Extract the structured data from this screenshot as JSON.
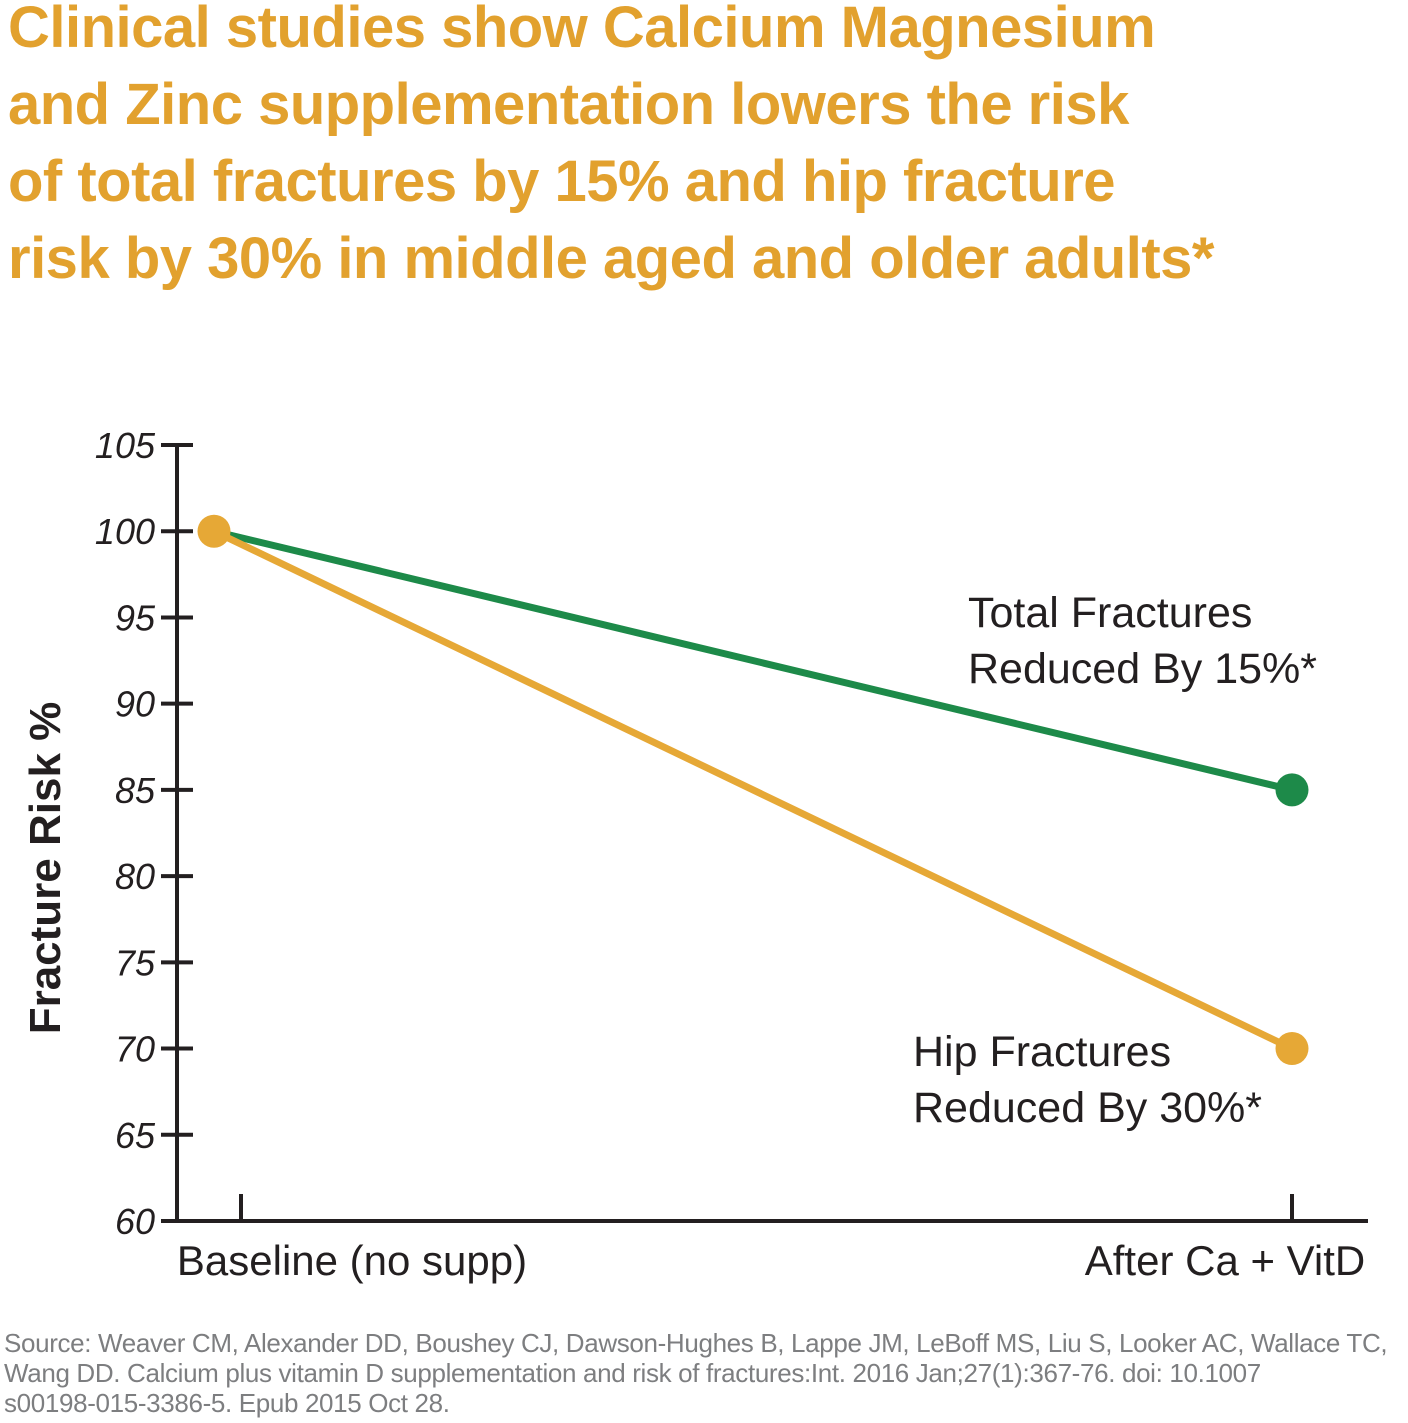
{
  "title": {
    "lines": [
      "Clinical studies show Calcium Magnesium",
      "and Zinc supplementation lowers the risk",
      "of total fractures by 15% and hip fracture",
      "risk by 30% in middle aged and older adults*"
    ],
    "color": "#E2A12E"
  },
  "chart_data": {
    "type": "line",
    "title": "",
    "xlabel": "",
    "ylabel": "Fracture Risk %",
    "ylim": [
      60,
      105
    ],
    "ytick_step": 5,
    "ytick_labels": [
      "60",
      "65",
      "70",
      "75",
      "80",
      "85",
      "90",
      "95",
      "100",
      "105"
    ],
    "categories": [
      "Baseline (no supp)",
      "After Ca + VitD"
    ],
    "grid": false,
    "legend_position": "inline-annotations",
    "axis_color": "#231F20",
    "marker_color": "#E6A836",
    "series": [
      {
        "name": "Total Fractures",
        "color": "#1D8A49",
        "values": [
          100,
          85
        ],
        "annotation_lines": [
          "Total Fractures",
          "Reduced By 15%*"
        ]
      },
      {
        "name": "Hip Fractures",
        "color": "#E6A836",
        "values": [
          100,
          70
        ],
        "annotation_lines": [
          "Hip Fractures",
          "Reduced By 30%*"
        ]
      }
    ]
  },
  "footer": {
    "color": "#7D7E80",
    "lines": [
      "Source: Weaver CM, Alexander DD, Boushey CJ, Dawson-Hughes B, Lappe JM, LeBoff MS, Liu S, Looker AC, Wallace TC,",
      "Wang DD. Calcium plus vitamin D supplementation and risk of fractures:Int. 2016 Jan;27(1):367-76. doi: 10.1007",
      "s00198-015-3386-5. Epub 2015 Oct 28."
    ]
  }
}
